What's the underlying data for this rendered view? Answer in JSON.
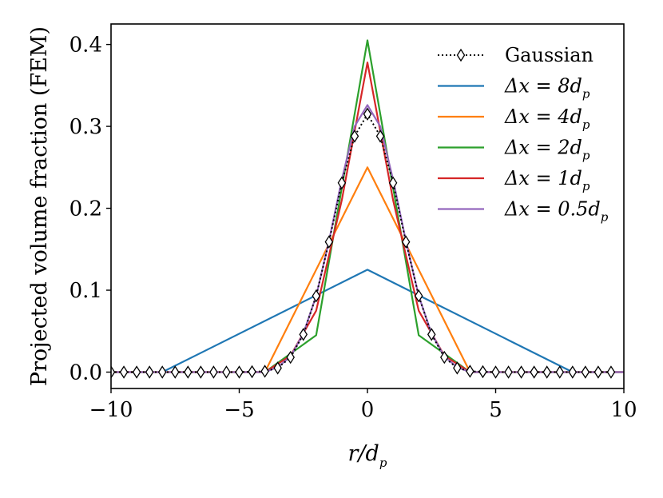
{
  "chart_data": {
    "type": "line",
    "title": "",
    "xlabel": "r/d",
    "xlabel_sub": "p",
    "ylabel": "Projected volume fraction (FEM)",
    "xlim": [
      -10,
      10
    ],
    "ylim": [
      -0.02,
      0.425
    ],
    "xticks": [
      -10,
      -5,
      0,
      5,
      10
    ],
    "xtick_labels": [
      "−10",
      "−5",
      "0",
      "5",
      "10"
    ],
    "yticks": [
      0.0,
      0.1,
      0.2,
      0.3,
      0.4
    ],
    "ytick_labels": [
      "0.0",
      "0.1",
      "0.2",
      "0.3",
      "0.4"
    ],
    "grid": false,
    "legend_position": "top-right",
    "series": [
      {
        "name": "Gaussian",
        "label_main": "Gaussian",
        "label_sub": "",
        "color": "#000000",
        "style": "dotted-diamond",
        "x": [
          -10,
          -9.5,
          -9,
          -8.5,
          -8,
          -7.5,
          -7,
          -6.5,
          -6,
          -5.5,
          -5,
          -4.5,
          -4,
          -3.5,
          -3,
          -2.5,
          -2,
          -1.5,
          -1,
          -0.5,
          0,
          0.5,
          1,
          1.5,
          2,
          2.5,
          3,
          3.5,
          4,
          4.5,
          5,
          5.5,
          6,
          6.5,
          7,
          7.5,
          8,
          8.5,
          9,
          9.5
        ],
        "y": [
          0,
          0,
          0,
          0,
          0,
          0,
          0,
          0,
          0,
          0,
          0,
          0.0005,
          0.001,
          0.005,
          0.018,
          0.046,
          0.093,
          0.159,
          0.231,
          0.288,
          0.315,
          0.288,
          0.231,
          0.159,
          0.093,
          0.046,
          0.018,
          0.005,
          0.001,
          0.0005,
          0,
          0,
          0,
          0,
          0,
          0,
          0,
          0,
          0,
          0
        ]
      },
      {
        "name": "dx=8dp",
        "label_main": "Δx = 8d",
        "label_sub": "p",
        "color": "#1f77b4",
        "x": [
          -10,
          -8,
          0,
          8,
          10
        ],
        "y": [
          0,
          0,
          0.125,
          0,
          0
        ]
      },
      {
        "name": "dx=4dp",
        "label_main": "Δx = 4d",
        "label_sub": "p",
        "color": "#ff7f0e",
        "x": [
          -10,
          -4,
          0,
          4,
          10
        ],
        "y": [
          0,
          0,
          0.25,
          0,
          0
        ]
      },
      {
        "name": "dx=2dp",
        "label_main": "Δx = 2d",
        "label_sub": "p",
        "color": "#2ca02c",
        "x": [
          -10,
          -4,
          -2,
          0,
          2,
          4,
          10
        ],
        "y": [
          0,
          0,
          0.045,
          0.405,
          0.045,
          0,
          0
        ]
      },
      {
        "name": "dx=1dp",
        "label_main": "Δx = 1d",
        "label_sub": "p",
        "color": "#d62728",
        "x": [
          -10,
          -4,
          -3,
          -2,
          -1,
          0,
          1,
          2,
          3,
          4,
          10
        ],
        "y": [
          0,
          0,
          0.02,
          0.075,
          0.21,
          0.378,
          0.21,
          0.075,
          0.02,
          0,
          0
        ]
      },
      {
        "name": "dx=0.5dp",
        "label_main": "Δx = 0.5d",
        "label_sub": "p",
        "color": "#9467bd",
        "x": [
          -10,
          -4,
          -3.5,
          -3,
          -2.5,
          -2,
          -1.5,
          -1,
          -0.5,
          0,
          0.5,
          1,
          1.5,
          2,
          2.5,
          3,
          3.5,
          4,
          10
        ],
        "y": [
          0,
          0,
          0.006,
          0.019,
          0.047,
          0.093,
          0.16,
          0.235,
          0.3,
          0.326,
          0.3,
          0.235,
          0.16,
          0.093,
          0.047,
          0.019,
          0.006,
          0,
          0
        ]
      }
    ]
  }
}
